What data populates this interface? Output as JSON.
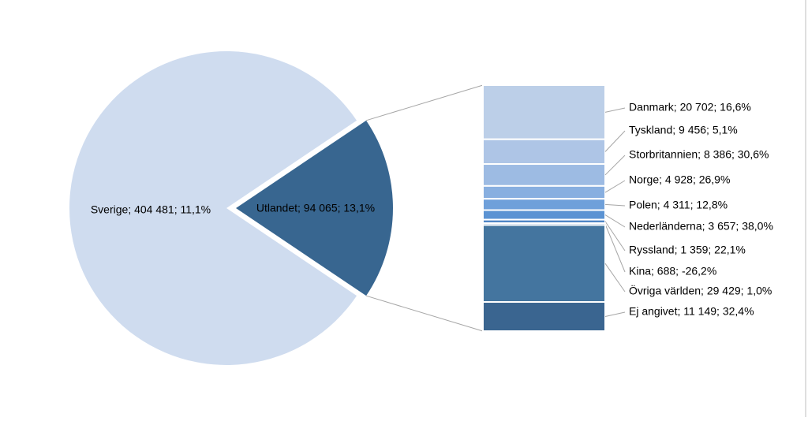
{
  "chart_data": {
    "type": "pie-of-bar",
    "pie": {
      "values": [
        404481,
        94065
      ],
      "value_labels": [
        "Sverige; 404 481; 11,1%",
        "Utlandet; 94 065; 13,1%"
      ],
      "colors": [
        "#cfdcef",
        "#386690"
      ]
    },
    "bar": {
      "values": [
        20702,
        9456,
        8386,
        4928,
        4311,
        3657,
        1359,
        688,
        29429,
        11149
      ],
      "value_labels": [
        "Danmark; 20 702; 16,6%",
        "Tyskland; 9 456; 5,1%",
        "Storbritannien; 8 386; 30,6%",
        "Norge; 4 928; 26,9%",
        "Polen; 4 311; 12,8%",
        "Nederländerna; 3 657; 38,0%",
        "Ryssland; 1 359; 22,1%",
        "Kina; 688; -26,2%",
        "Övriga världen; 29 429; 1,0%",
        "Ej angivet; 11 149; 32,4%"
      ],
      "colors": [
        "#bccfe8",
        "#aec5e6",
        "#9dbbe3",
        "#88afe0",
        "#6fa0da",
        "#5b93d3",
        "#4f86c6",
        "#4a7fba",
        "#44759f",
        "#3a6590"
      ]
    }
  }
}
